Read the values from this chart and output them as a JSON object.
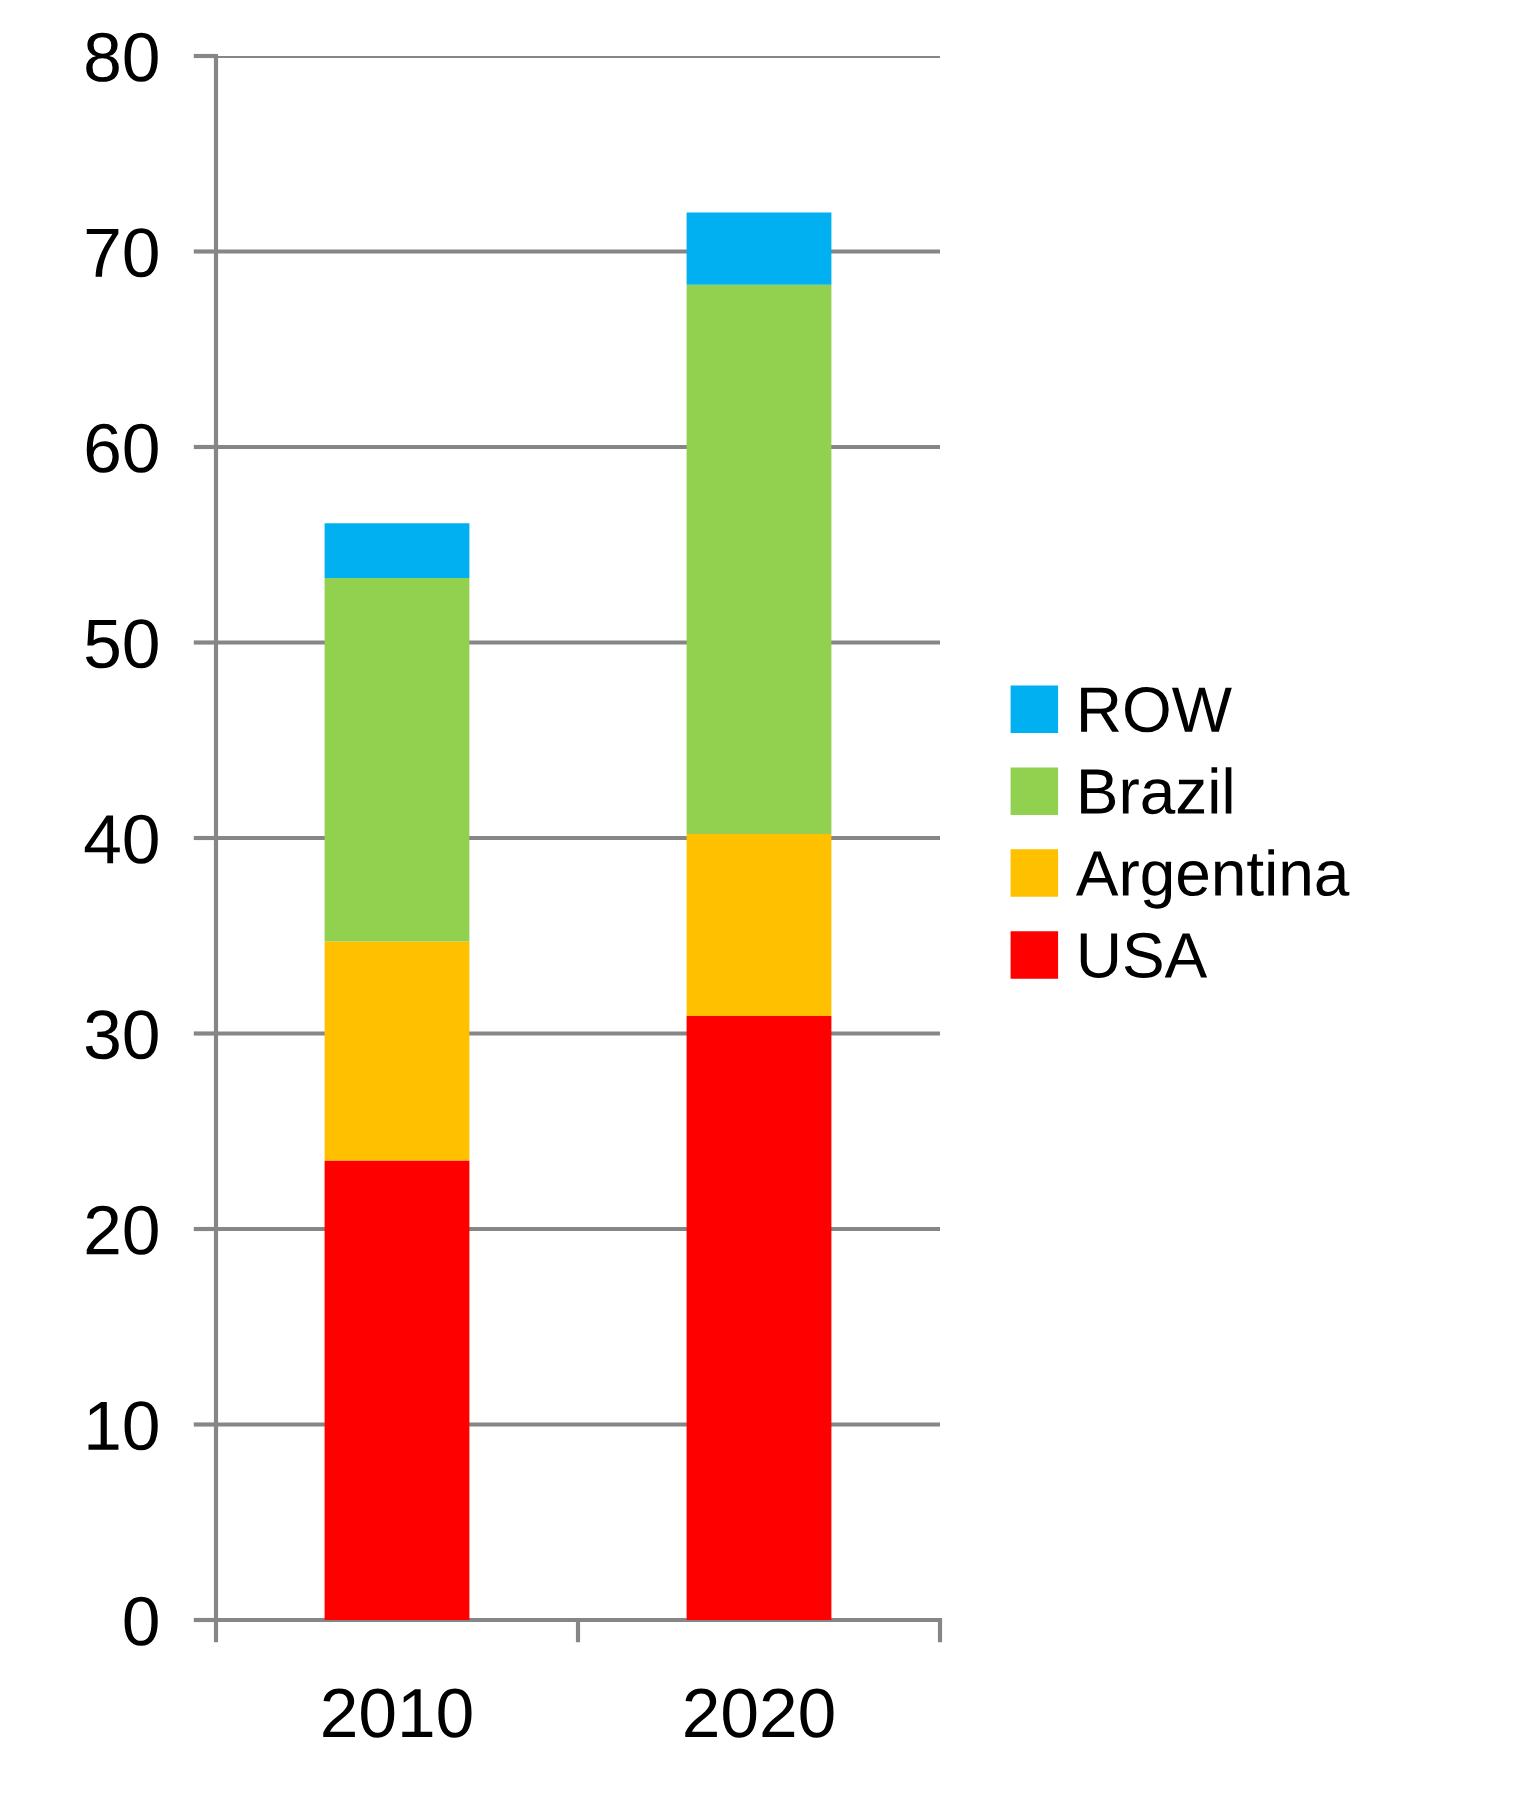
{
  "chart_data": {
    "type": "bar",
    "stacked": true,
    "categories": [
      "2010",
      "2020"
    ],
    "series": [
      {
        "name": "USA",
        "color": "#ff0000",
        "values": [
          23.5,
          30.9
        ]
      },
      {
        "name": "Argentina",
        "color": "#ffc000",
        "values": [
          11.2,
          9.3
        ]
      },
      {
        "name": "Brazil",
        "color": "#92d050",
        "values": [
          18.6,
          28.1
        ]
      },
      {
        "name": "ROW",
        "color": "#00b0f0",
        "values": [
          2.8,
          3.7
        ]
      }
    ],
    "ylim": [
      0,
      80
    ],
    "yticks": [
      0,
      10,
      20,
      30,
      40,
      50,
      60,
      70,
      80
    ],
    "grid": "y",
    "legend": "right"
  }
}
